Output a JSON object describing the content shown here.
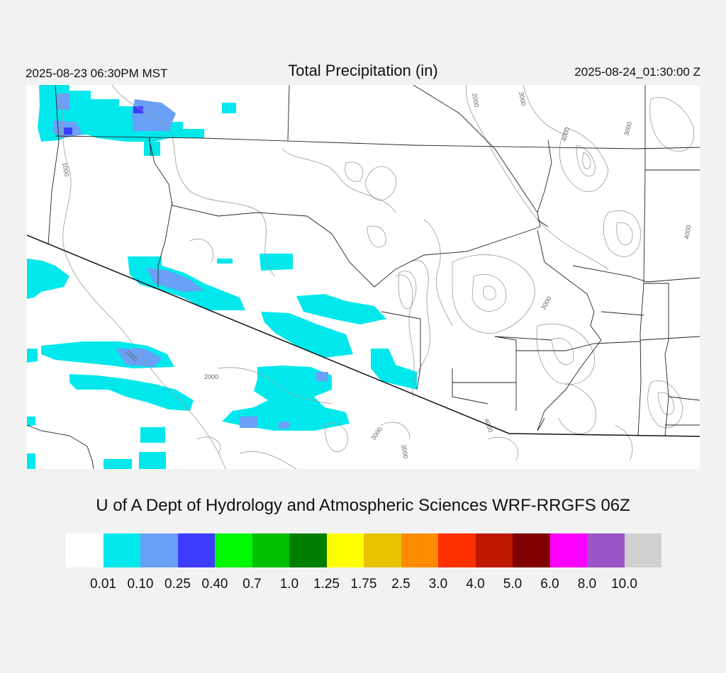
{
  "header": {
    "valid_local": "2025-08-23 06:30PM MST",
    "title": "Total Precipitation (in)",
    "valid_utc": "2025-08-24_01:30:00 Z"
  },
  "credit": "U of A Dept of Hydrology and Atmospheric Sciences WRF-RRGFS 06Z",
  "legend": {
    "colors": [
      "#ffffff",
      "#00e8ec",
      "#6aa0f5",
      "#3c3cff",
      "#00f800",
      "#00c000",
      "#007e00",
      "#ffff00",
      "#e8c400",
      "#ff8c00",
      "#ff3000",
      "#c01800",
      "#800000",
      "#ff00ff",
      "#9b55c8",
      "#d0d0d0"
    ],
    "labels": [
      "0.01",
      "0.10",
      "0.25",
      "0.40",
      "0.7",
      "1.0",
      "1.25",
      "1.75",
      "2.5",
      "3.0",
      "4.0",
      "5.0",
      "6.0",
      "8.0",
      "10.0"
    ]
  },
  "map": {
    "contour_labels": [
      "1000",
      "2000",
      "3000",
      "4000",
      "3000",
      "4000",
      "3000",
      "1000",
      "2000",
      "3000",
      "3000",
      "4000"
    ],
    "precip_cells": [
      {
        "level": 1
      },
      {
        "level": 2
      },
      {
        "level": 3
      }
    ]
  }
}
